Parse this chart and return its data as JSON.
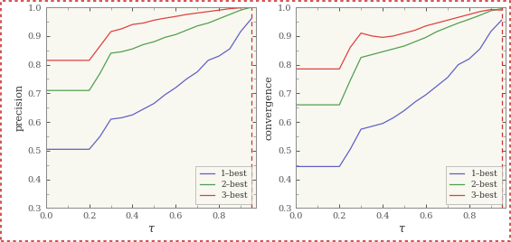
{
  "precision": {
    "tau": [
      0.0,
      0.05,
      0.1,
      0.15,
      0.2,
      0.25,
      0.3,
      0.35,
      0.4,
      0.45,
      0.5,
      0.55,
      0.6,
      0.65,
      0.7,
      0.75,
      0.8,
      0.85,
      0.9,
      0.95
    ],
    "n1": [
      0.505,
      0.505,
      0.505,
      0.505,
      0.505,
      0.55,
      0.61,
      0.615,
      0.625,
      0.645,
      0.665,
      0.695,
      0.72,
      0.75,
      0.775,
      0.815,
      0.83,
      0.855,
      0.915,
      0.96
    ],
    "n2": [
      0.71,
      0.71,
      0.71,
      0.71,
      0.71,
      0.77,
      0.84,
      0.845,
      0.855,
      0.87,
      0.88,
      0.895,
      0.905,
      0.92,
      0.935,
      0.945,
      0.96,
      0.975,
      0.99,
      1.0
    ],
    "n3": [
      0.815,
      0.815,
      0.815,
      0.815,
      0.815,
      0.865,
      0.915,
      0.925,
      0.94,
      0.945,
      0.955,
      0.962,
      0.968,
      0.975,
      0.98,
      0.985,
      0.99,
      0.995,
      0.998,
      1.0
    ]
  },
  "convergence": {
    "tau": [
      0.0,
      0.05,
      0.1,
      0.15,
      0.2,
      0.25,
      0.3,
      0.35,
      0.4,
      0.45,
      0.5,
      0.55,
      0.6,
      0.65,
      0.7,
      0.75,
      0.8,
      0.85,
      0.9,
      0.95
    ],
    "n1": [
      0.445,
      0.445,
      0.445,
      0.445,
      0.445,
      0.505,
      0.575,
      0.585,
      0.595,
      0.615,
      0.64,
      0.67,
      0.695,
      0.725,
      0.755,
      0.8,
      0.82,
      0.855,
      0.915,
      0.955
    ],
    "n2": [
      0.66,
      0.66,
      0.66,
      0.66,
      0.66,
      0.745,
      0.825,
      0.835,
      0.845,
      0.855,
      0.865,
      0.88,
      0.895,
      0.915,
      0.93,
      0.945,
      0.958,
      0.972,
      0.988,
      0.995
    ],
    "n3": [
      0.785,
      0.785,
      0.785,
      0.785,
      0.785,
      0.86,
      0.91,
      0.9,
      0.895,
      0.9,
      0.91,
      0.92,
      0.935,
      0.945,
      0.955,
      0.965,
      0.975,
      0.985,
      0.992,
      0.99
    ]
  },
  "color_n1": "#6060c8",
  "color_n2": "#50a050",
  "color_n3": "#e04040",
  "dashed_line_color": "#cc3333",
  "ylabel_precision": "precision",
  "ylabel_convergence": "convergence",
  "xlabel": "τ",
  "ylim": [
    0.3,
    1.0
  ],
  "xlim": [
    0.0,
    0.97
  ],
  "vline_x": 0.95,
  "legend_labels": [
    "1–best",
    "2–best",
    "3–best"
  ],
  "yticks": [
    0.3,
    0.4,
    0.5,
    0.6,
    0.7,
    0.8,
    0.9,
    1.0
  ],
  "xticks": [
    0.0,
    0.2,
    0.4,
    0.6,
    0.8
  ],
  "bg_color": "#f8f8f0",
  "spine_color": "#888888",
  "tick_color": "#555555",
  "linewidth": 0.9
}
